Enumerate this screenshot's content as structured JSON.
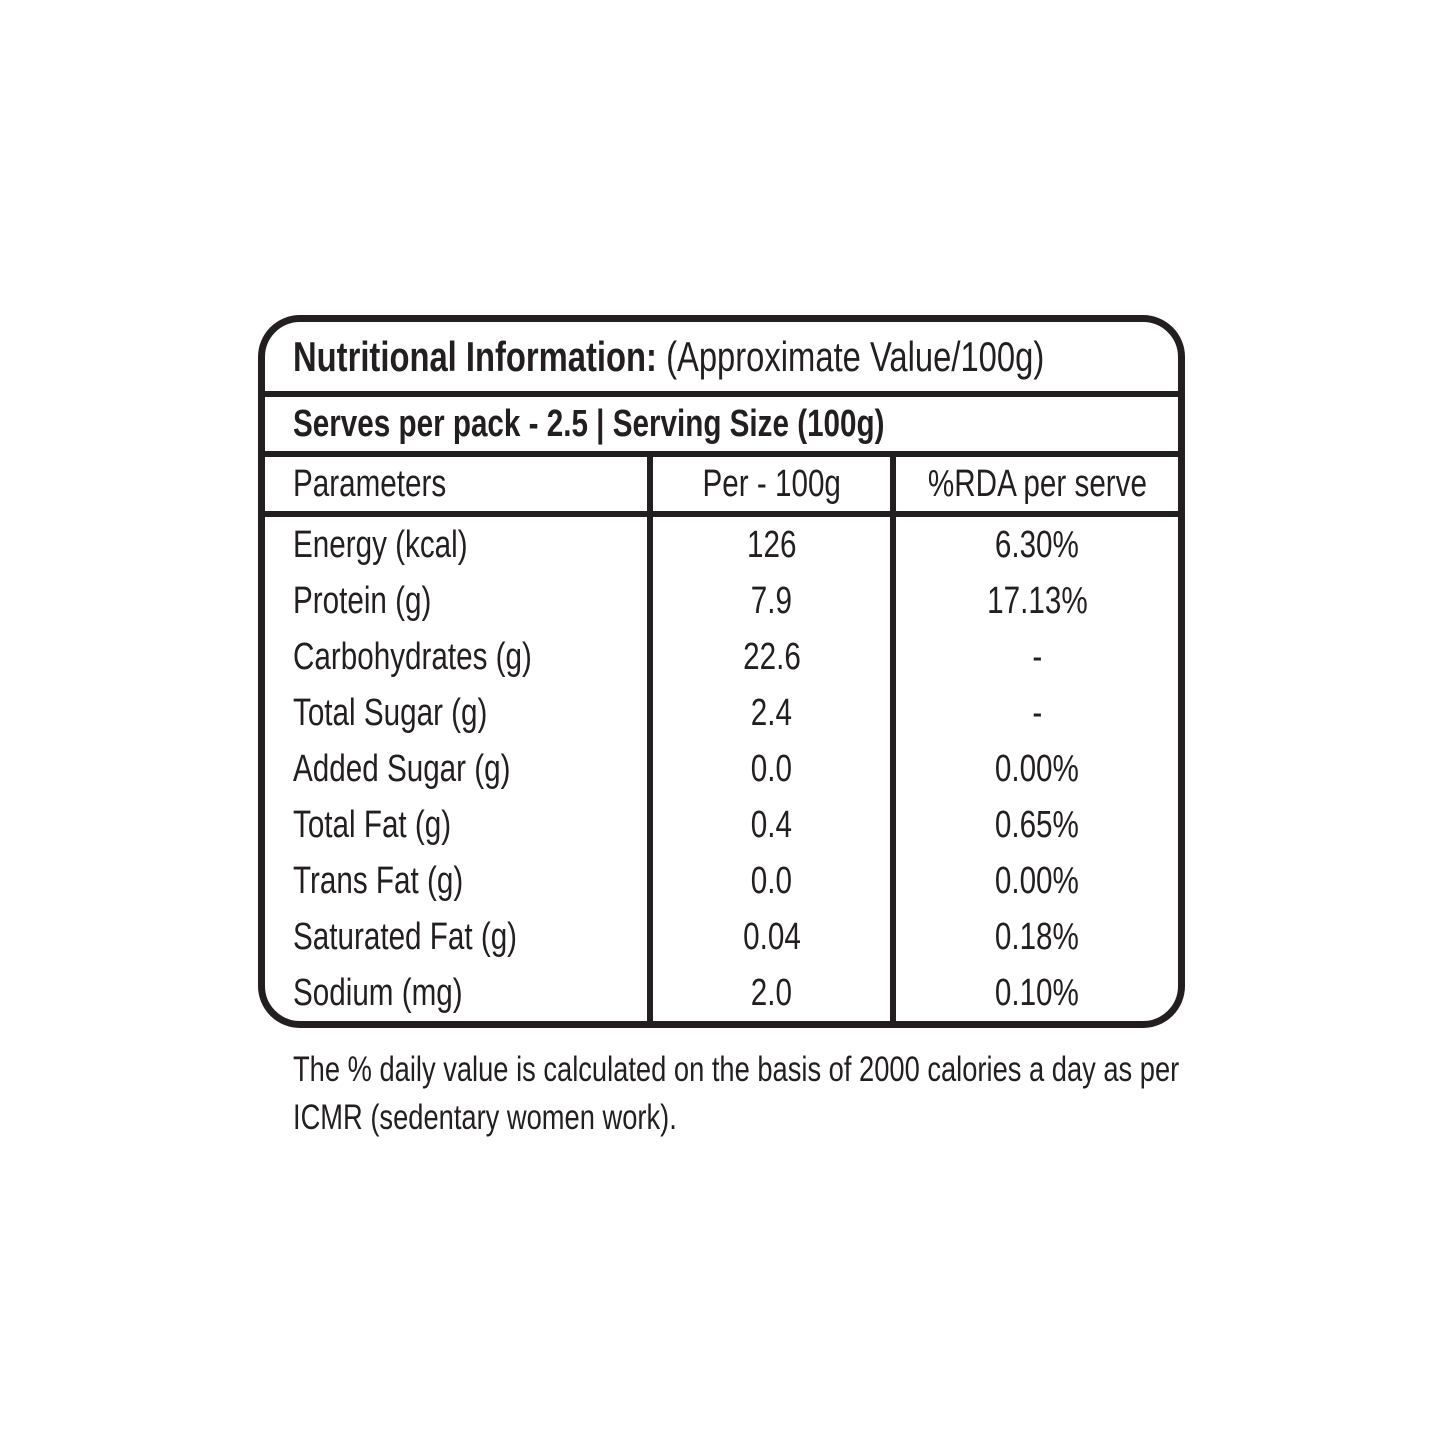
{
  "header": {
    "title_bold": "Nutritional Information:",
    "title_rest": " (Approximate Value/100g)",
    "serves_line": "Serves per pack - 2.5 | Serving Size (100g)"
  },
  "table": {
    "columns": [
      "Parameters",
      "Per - 100g",
      "%RDA per serve"
    ],
    "rows": [
      {
        "parameter": "Energy (kcal)",
        "per_100g": "126",
        "rda_per_serve": "6.30%"
      },
      {
        "parameter": "Protein (g)",
        "per_100g": "7.9",
        "rda_per_serve": "17.13%"
      },
      {
        "parameter": "Carbohydrates (g)",
        "per_100g": "22.6",
        "rda_per_serve": "-"
      },
      {
        "parameter": "Total Sugar (g)",
        "per_100g": "2.4",
        "rda_per_serve": "-"
      },
      {
        "parameter": "Added Sugar (g)",
        "per_100g": "0.0",
        "rda_per_serve": "0.00%"
      },
      {
        "parameter": "Total Fat (g)",
        "per_100g": "0.4",
        "rda_per_serve": "0.65%"
      },
      {
        "parameter": "Trans Fat (g)",
        "per_100g": "0.0",
        "rda_per_serve": "0.00%"
      },
      {
        "parameter": "Saturated Fat (g)",
        "per_100g": "0.04",
        "rda_per_serve": "0.18%"
      },
      {
        "parameter": "Sodium (mg)",
        "per_100g": "2.0",
        "rda_per_serve": "0.10%"
      }
    ]
  },
  "footnote": {
    "line1": "The % daily value is calculated on the basis of 2000 calories a day as per",
    "line2": "ICMR (sedentary women work)."
  },
  "colors": {
    "ink": "#231f20",
    "background": "#ffffff"
  }
}
